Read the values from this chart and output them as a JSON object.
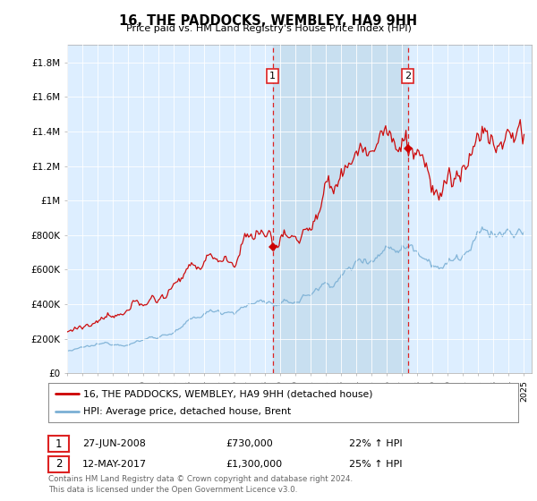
{
  "title": "16, THE PADDOCKS, WEMBLEY, HA9 9HH",
  "subtitle": "Price paid vs. HM Land Registry's House Price Index (HPI)",
  "background_color": "#ffffff",
  "plot_bg_color": "#ddeeff",
  "ylim": [
    0,
    1900000
  ],
  "yticks": [
    0,
    200000,
    400000,
    600000,
    800000,
    1000000,
    1200000,
    1400000,
    1600000,
    1800000
  ],
  "ytick_labels": [
    "£0",
    "£200K",
    "£400K",
    "£600K",
    "£800K",
    "£1M",
    "£1.2M",
    "£1.4M",
    "£1.6M",
    "£1.8M"
  ],
  "xstart_year": 1995,
  "xend_year": 2025,
  "red_line_label": "16, THE PADDOCKS, WEMBLEY, HA9 9HH (detached house)",
  "blue_line_label": "HPI: Average price, detached house, Brent",
  "sale1_date": "27-JUN-2008",
  "sale1_price": 730000,
  "sale1_pct": "22%",
  "sale2_date": "12-MAY-2017",
  "sale2_price": 1300000,
  "sale2_pct": "25%",
  "sale1_year": 2008.5,
  "sale2_year": 2017.37,
  "red_color": "#cc0000",
  "blue_color": "#7aafd4",
  "shade_color": "#c8dff0",
  "vline_color": "#dd2222",
  "footer": "Contains HM Land Registry data © Crown copyright and database right 2024.\nThis data is licensed under the Open Government Licence v3.0."
}
